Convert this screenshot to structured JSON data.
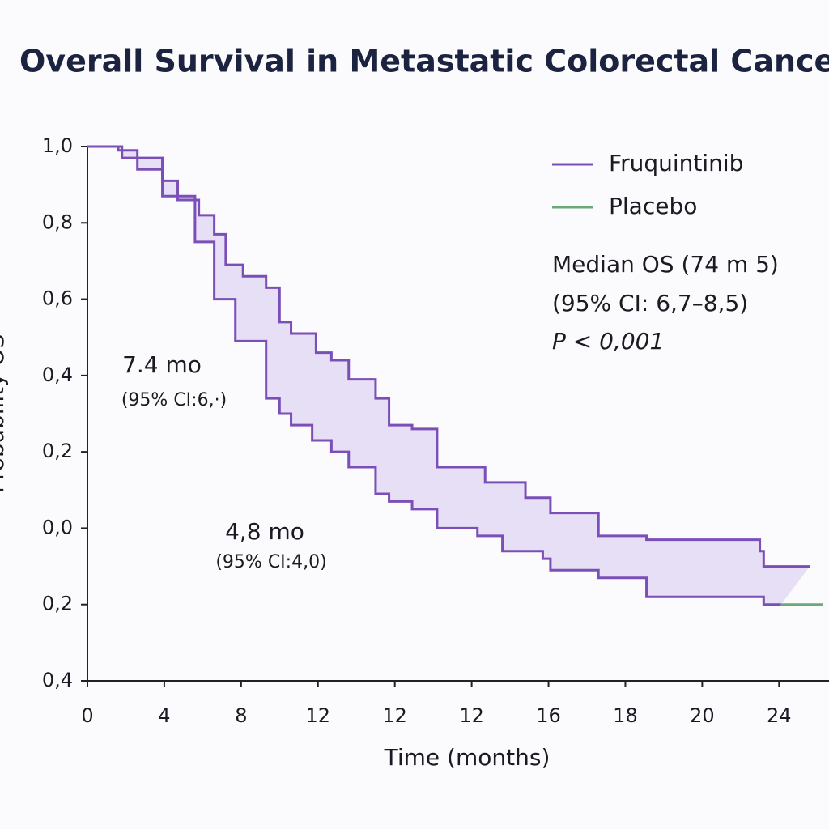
{
  "chart_data": {
    "type": "step",
    "title": "Overall Survival in Metastatic Colorectal Cance",
    "x_label": "Time (months)",
    "y_label": "Probability OS",
    "xlim": [
      0,
      38.6
    ],
    "ylim": [
      -0.4,
      1.0
    ],
    "xticks": [
      0,
      4,
      8,
      12,
      {
        "value": 16,
        "label": "12"
      },
      {
        "value": 20,
        "label": "12"
      },
      {
        "value": 24,
        "label": "16"
      },
      {
        "value": 28,
        "label": "18"
      },
      {
        "value": 32,
        "label": "20"
      },
      {
        "value": 36,
        "label": "24"
      }
    ],
    "yticks": [
      {
        "value": 1.0,
        "label": "1,0"
      },
      {
        "value": 0.8,
        "label": "0,8"
      },
      {
        "value": 0.6,
        "label": "0,6"
      },
      {
        "value": 0.4,
        "label": "0,4"
      },
      {
        "value": 0.2,
        "label": "0,2"
      },
      {
        "value": 0.0,
        "label": "0,0"
      },
      {
        "value": -0.2,
        "label": "0,2"
      },
      {
        "value": -0.4,
        "label": "0,4"
      }
    ],
    "band_color": "#e6dff5",
    "series": [
      {
        "name": "Fruquintinib",
        "color": "#7b4fb8",
        "line_color": "#7b4fb8",
        "x": [
          0,
          1.6,
          2.6,
          3.9,
          4.7,
          5.8,
          6.6,
          7.2,
          8.1,
          9.3,
          10.0,
          10.6,
          11.9,
          12.7,
          13.6,
          15.0,
          15.7,
          16.9,
          18.2,
          20.7,
          22.8,
          24.1,
          26.6,
          29.1,
          35.0,
          35.2,
          37.6
        ],
        "values": [
          1.0,
          0.99,
          0.94,
          0.91,
          0.86,
          0.82,
          0.77,
          0.69,
          0.66,
          0.63,
          0.54,
          0.51,
          0.46,
          0.44,
          0.39,
          0.34,
          0.27,
          0.26,
          0.16,
          0.12,
          0.08,
          0.04,
          -0.02,
          -0.03,
          -0.06,
          -0.1,
          -0.1
        ]
      },
      {
        "name": "Placebo",
        "color": "#6aaa78",
        "line_color": "#7b4fb8",
        "x": [
          0,
          1.8,
          3.9,
          5.6,
          6.6,
          7.7,
          9.3,
          10.0,
          10.6,
          11.7,
          12.7,
          13.6,
          15.0,
          15.7,
          16.9,
          18.2,
          20.3,
          21.6,
          23.7,
          24.1,
          26.6,
          29.1,
          35.2,
          36.1,
          38.3
        ],
        "values": [
          1.0,
          0.97,
          0.87,
          0.75,
          0.6,
          0.49,
          0.34,
          0.3,
          0.27,
          0.23,
          0.2,
          0.16,
          0.09,
          0.07,
          0.05,
          0.0,
          -0.02,
          -0.06,
          -0.08,
          -0.11,
          -0.13,
          -0.18,
          -0.2,
          -0.2,
          -0.2
        ]
      }
    ],
    "annotations": [
      "Median OS (74 m 5)",
      "(95% CI:  6,7–8,5)",
      "P < 0,001",
      "7.4 mo",
      "(95% CI:6,·)",
      "4,8 mo",
      "(95% CI:4,0)"
    ]
  }
}
